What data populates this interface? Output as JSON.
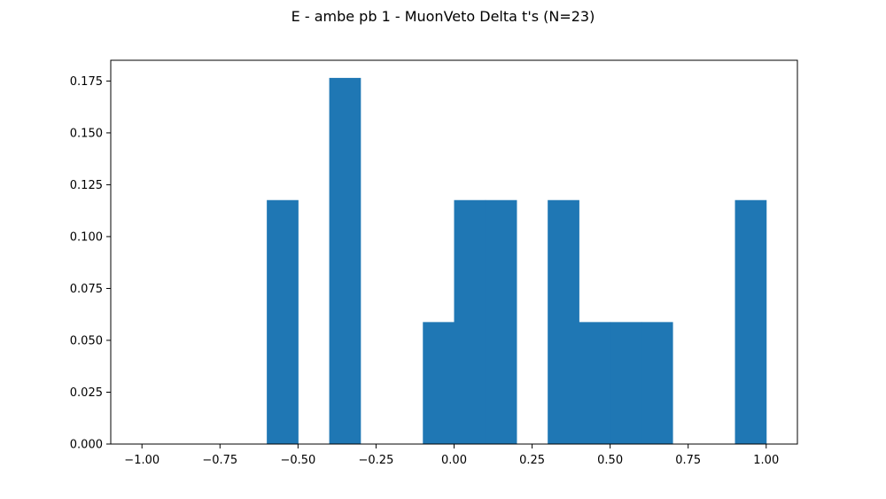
{
  "chart_data": {
    "type": "bar",
    "title": "E - ambe pb 1 - MuonVeto Delta t's (N=23)",
    "xlabel": "",
    "ylabel": "",
    "xlim": [
      -1.1,
      1.1
    ],
    "ylim": [
      0,
      0.185
    ],
    "bin_width": 0.1,
    "bins": [
      {
        "x0": -0.6,
        "x1": -0.5,
        "value": 0.1176
      },
      {
        "x0": -0.4,
        "x1": -0.3,
        "value": 0.1765
      },
      {
        "x0": -0.1,
        "x1": 0.0,
        "value": 0.0588
      },
      {
        "x0": 0.0,
        "x1": 0.1,
        "value": 0.1176
      },
      {
        "x0": 0.1,
        "x1": 0.2,
        "value": 0.1176
      },
      {
        "x0": 0.3,
        "x1": 0.4,
        "value": 0.1176
      },
      {
        "x0": 0.4,
        "x1": 0.5,
        "value": 0.0588
      },
      {
        "x0": 0.5,
        "x1": 0.6,
        "value": 0.0588
      },
      {
        "x0": 0.6,
        "x1": 0.7,
        "value": 0.0588
      },
      {
        "x0": 0.9,
        "x1": 1.0,
        "value": 0.1176
      }
    ],
    "xticks": [
      {
        "value": -1.0,
        "label": "−1.00"
      },
      {
        "value": -0.75,
        "label": "−0.75"
      },
      {
        "value": -0.5,
        "label": "−0.50"
      },
      {
        "value": -0.25,
        "label": "−0.25"
      },
      {
        "value": 0.0,
        "label": "0.00"
      },
      {
        "value": 0.25,
        "label": "0.25"
      },
      {
        "value": 0.5,
        "label": "0.50"
      },
      {
        "value": 0.75,
        "label": "0.75"
      },
      {
        "value": 1.0,
        "label": "1.00"
      }
    ],
    "yticks": [
      {
        "value": 0.0,
        "label": "0.000"
      },
      {
        "value": 0.025,
        "label": "0.025"
      },
      {
        "value": 0.05,
        "label": "0.050"
      },
      {
        "value": 0.075,
        "label": "0.075"
      },
      {
        "value": 0.1,
        "label": "0.100"
      },
      {
        "value": 0.125,
        "label": "0.125"
      },
      {
        "value": 0.15,
        "label": "0.150"
      },
      {
        "value": 0.175,
        "label": "0.175"
      }
    ],
    "grid": false,
    "colors": {
      "bar": "#1f77b4",
      "axis": "#000000",
      "background": "#ffffff"
    }
  }
}
